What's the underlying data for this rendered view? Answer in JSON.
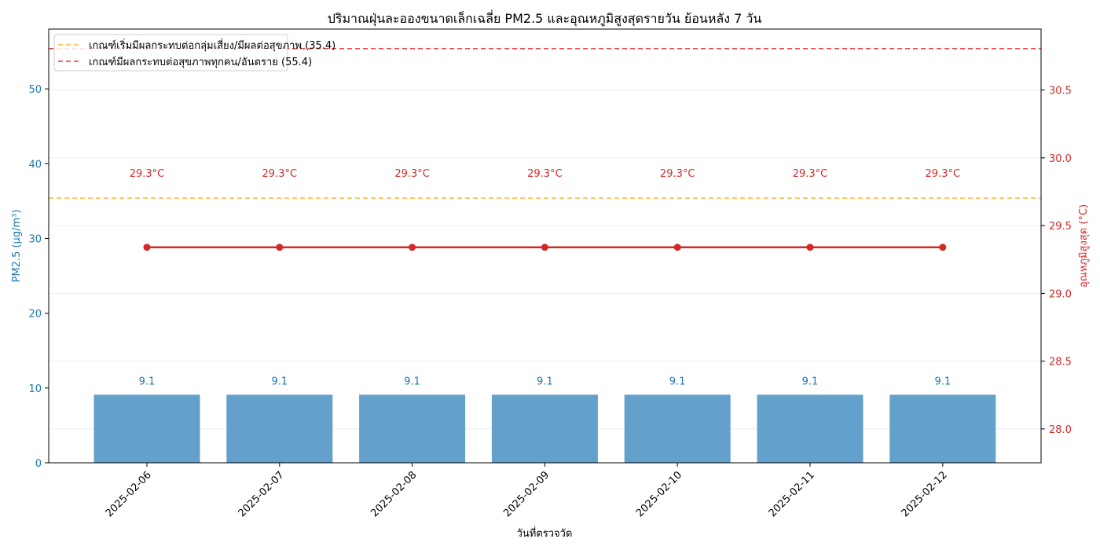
{
  "chart_data": {
    "type": "bar",
    "title": "ปริมาณฝุ่นละอองขนาดเล็กเฉลี่ย PM2.5 และอุณหภูมิสูงสุดรายวัน ย้อนหลัง 7 วัน",
    "xlabel": "วันที่ตรวจวัด",
    "categories": [
      "2025-02-06",
      "2025-02-07",
      "2025-02-08",
      "2025-02-09",
      "2025-02-10",
      "2025-02-11",
      "2025-02-12"
    ],
    "series": [
      {
        "name": "PM2.5",
        "type": "bar",
        "axis": "left",
        "values": [
          9.1,
          9.1,
          9.1,
          9.1,
          9.1,
          9.1,
          9.1
        ],
        "labels": [
          "9.1",
          "9.1",
          "9.1",
          "9.1",
          "9.1",
          "9.1",
          "9.1"
        ]
      },
      {
        "name": "อุณหภูมิสูงสุด",
        "type": "line",
        "axis": "right",
        "values": [
          29.34,
          29.34,
          29.34,
          29.34,
          29.34,
          29.34,
          29.34
        ],
        "labels": [
          "29.3°C",
          "29.3°C",
          "29.3°C",
          "29.3°C",
          "29.3°C",
          "29.3°C",
          "29.3°C"
        ]
      }
    ],
    "y_left": {
      "label": "PM2.5 (µg/m³)",
      "range": [
        0,
        58
      ],
      "ticks": [
        0,
        10,
        20,
        30,
        40,
        50
      ],
      "tick_labels": [
        "0",
        "10",
        "20",
        "30",
        "40",
        "50"
      ]
    },
    "y_right": {
      "label": "อุณหภูมิสูงสุด (°C)",
      "range": [
        27.75,
        30.95
      ],
      "ticks": [
        28.0,
        28.5,
        29.0,
        29.5,
        30.0,
        30.5
      ],
      "tick_labels": [
        "28.0",
        "28.5",
        "29.0",
        "29.5",
        "30.0",
        "30.5"
      ]
    },
    "reference_lines": [
      {
        "label": "เกณฑ์เริ่มมีผลกระทบต่อกลุ่มเสี่ยง/มีผลต่อสุขภาพ (35.4)",
        "value": 35.4,
        "color": "#ffb03b"
      },
      {
        "label": "เกณฑ์มีผลกระทบต่อสุขภาพทุกคน/อันตราย (55.4)",
        "value": 55.4,
        "color": "#f0393c"
      }
    ],
    "legend": "top-left",
    "grid": true,
    "colors": {
      "bar": "#63a0cb",
      "line": "#d62728",
      "left_axis": "#1f77b4",
      "right_axis": "#d62728"
    }
  }
}
